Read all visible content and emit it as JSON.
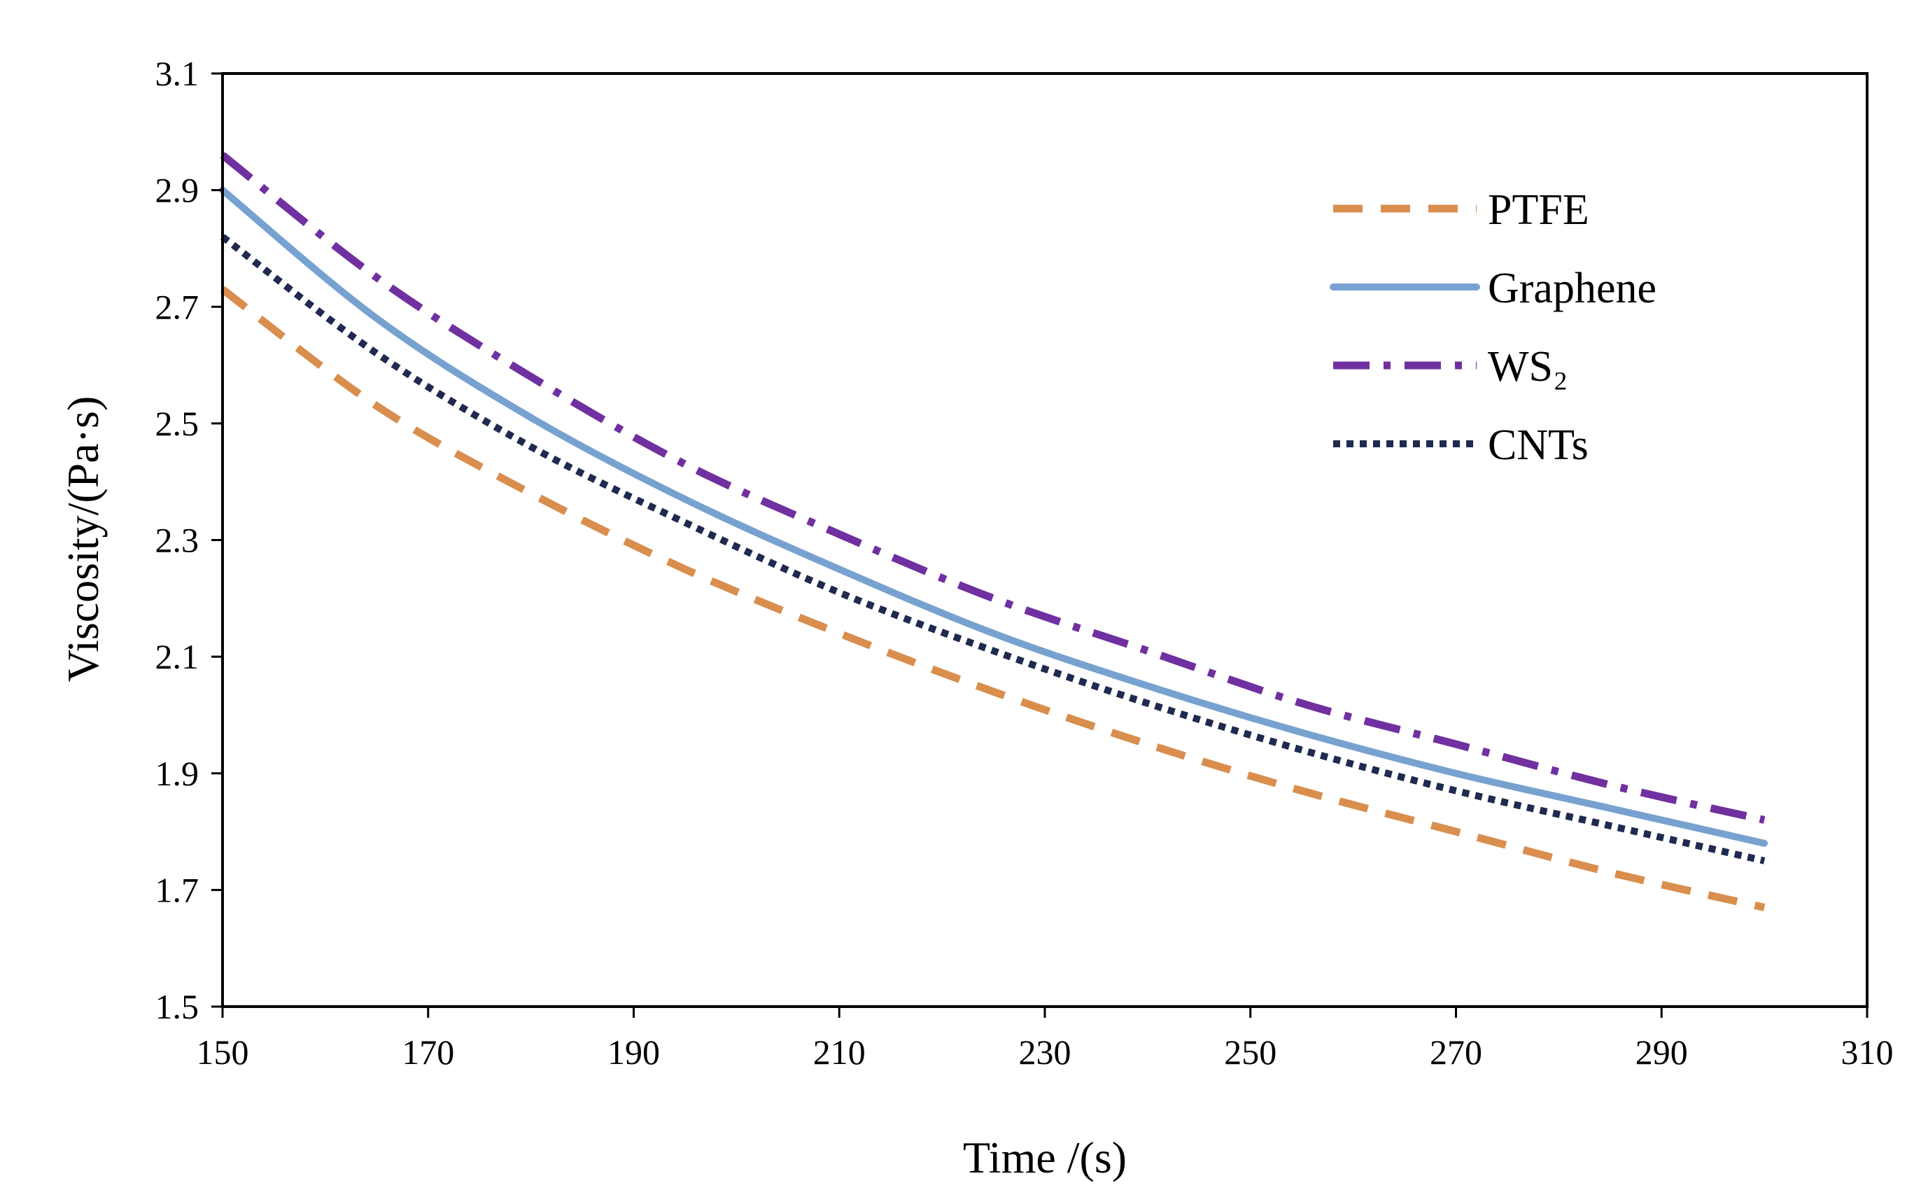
{
  "chart_data": {
    "type": "line",
    "title": "",
    "xlabel": "Time /(s)",
    "ylabel": "Viscosity/(Pa·s)",
    "xlim": [
      150,
      310
    ],
    "ylim": [
      1.5,
      3.1
    ],
    "xticks": [
      150,
      170,
      190,
      210,
      230,
      250,
      270,
      290,
      310
    ],
    "xtick_labels": [
      "150",
      "170",
      "190",
      "210",
      "230",
      "250",
      "270",
      "290",
      "310"
    ],
    "yticks": [
      1.5,
      1.7,
      1.9,
      2.1,
      2.3,
      2.5,
      2.7,
      2.9,
      3.1
    ],
    "ytick_labels": [
      "1.5",
      "1.7",
      "1.9",
      "2.1",
      "2.3",
      "2.5",
      "2.7",
      "2.9",
      "3.1"
    ],
    "grid": false,
    "legend_position": "top-right",
    "x": [
      150,
      165,
      180,
      195,
      210,
      225,
      240,
      255,
      270,
      285,
      300
    ],
    "series": [
      {
        "name": "PTFE",
        "legend_label": "PTFE",
        "color": "#D98E4E",
        "style": "dashed",
        "values": [
          2.73,
          2.53,
          2.38,
          2.25,
          2.14,
          2.04,
          1.95,
          1.87,
          1.8,
          1.73,
          1.67
        ]
      },
      {
        "name": "Graphene",
        "legend_label": "Graphene",
        "color": "#77A2D0",
        "style": "solid",
        "values": [
          2.9,
          2.68,
          2.51,
          2.37,
          2.25,
          2.14,
          2.05,
          1.97,
          1.9,
          1.84,
          1.78
        ]
      },
      {
        "name": "WS2",
        "legend_label": "WS₂",
        "color": "#7030A0",
        "style": "dashdot",
        "values": [
          2.96,
          2.75,
          2.58,
          2.43,
          2.31,
          2.2,
          2.11,
          2.02,
          1.95,
          1.88,
          1.82
        ]
      },
      {
        "name": "CNTs",
        "legend_label": "CNTs",
        "color": "#1F2A4E",
        "style": "dotted",
        "values": [
          2.82,
          2.62,
          2.46,
          2.33,
          2.21,
          2.11,
          2.02,
          1.94,
          1.87,
          1.81,
          1.75
        ]
      }
    ]
  }
}
